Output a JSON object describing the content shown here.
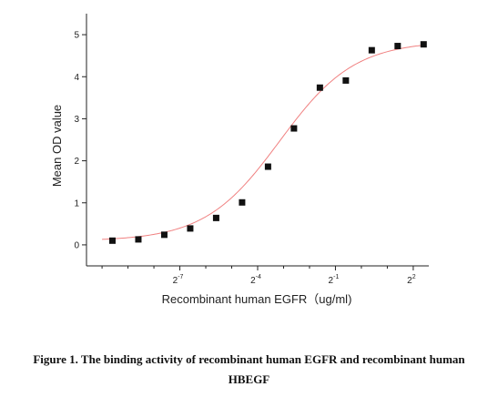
{
  "chart_data": {
    "type": "scatter",
    "xlabel": "Recombinant human EGFR（ug/ml)",
    "ylabel": "Mean OD value",
    "x_scale": "log2",
    "x_ticks": [
      {
        "exponent": -7,
        "base": "2",
        "sup": "-7"
      },
      {
        "exponent": -4,
        "base": "2",
        "sup": "-4"
      },
      {
        "exponent": -1,
        "base": "2",
        "sup": "-1"
      },
      {
        "exponent": 2,
        "base": "2",
        "sup": "2"
      }
    ],
    "xlim_log2": [
      -10.6,
      2.6
    ],
    "ylim": [
      -0.5,
      5.5
    ],
    "y_ticks": [
      "0",
      "1",
      "2",
      "3",
      "4",
      "5"
    ],
    "series": [
      {
        "points_log2x": [
          -9.6,
          -8.6,
          -7.6,
          -6.6,
          -5.6,
          -4.6,
          -3.6,
          -2.6,
          -1.6,
          -0.6,
          0.4,
          1.4,
          2.4
        ],
        "y": [
          0.1,
          0.13,
          0.24,
          0.39,
          0.64,
          1.01,
          1.86,
          2.77,
          3.74,
          3.91,
          4.63,
          4.73,
          4.77
        ],
        "marker": "square",
        "color": "#111111"
      }
    ],
    "fit_curve": {
      "model": "4PL",
      "bottom": 0.09,
      "top": 4.85,
      "ec50_log2": -3.15,
      "hill": 1.0,
      "color": "#f08080"
    },
    "grid": false
  },
  "caption": {
    "line1": "Figure 1. The binding activity of recombinant human EGFR and recombinant human",
    "line2": "HBEGF"
  }
}
